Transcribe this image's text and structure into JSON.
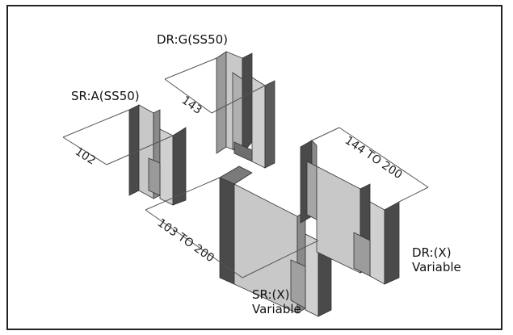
{
  "labels": {
    "dr_g": "DR:G(SS50)",
    "sr_a": "SR:A(SS50)",
    "sr_x_line1": "SR:(X)",
    "sr_x_line2": "Variable",
    "dr_x_line1": "DR:(X)",
    "dr_x_line2": "Variable"
  },
  "dimensions": {
    "d143": "143",
    "d102": "102",
    "d103_200": "103 TO 200",
    "d144_200": "144 TO 200"
  },
  "colors": {
    "face_light": "#c8c8c8",
    "face_mid": "#a9a9a9",
    "face_dark": "#4a4a4a",
    "face_top": "#8a8a8a"
  }
}
